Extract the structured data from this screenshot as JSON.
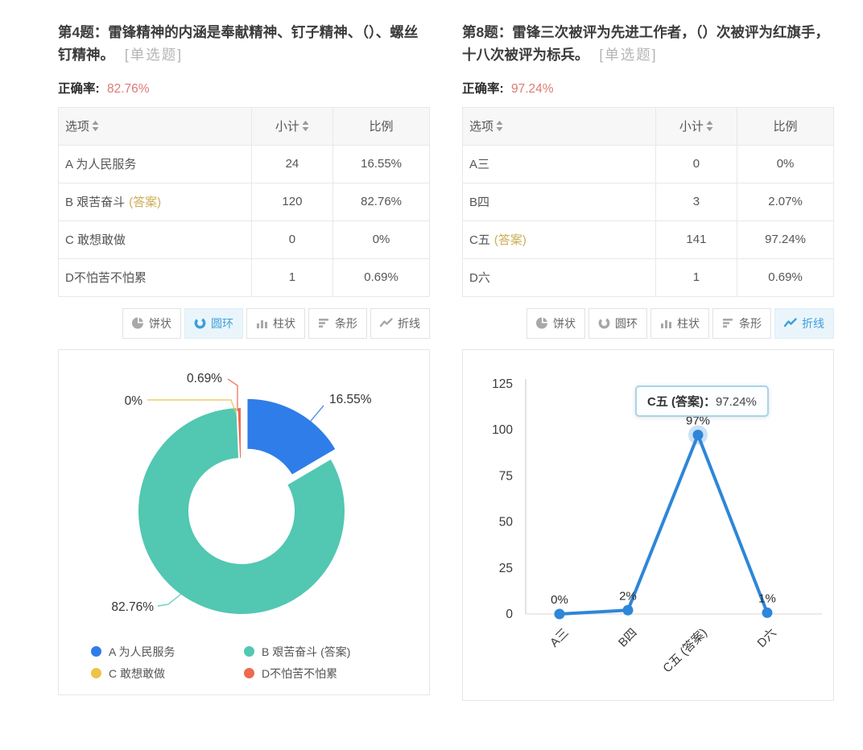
{
  "colors": {
    "series": [
      "#2f7de8",
      "#52c7b2",
      "#f0c24b",
      "#ec6a4f"
    ],
    "line_series": "#2e86d8",
    "active_tab_text": "#3ba0da",
    "answer_tag_gold": "#ccad56",
    "correct_rate_red": "#dd7a72"
  },
  "questions": [
    {
      "title": "第4题：雷锋精神的内涵是奉献精神、钉子精神、（）、螺丝钉精神。",
      "type_tag": "[单选题]",
      "correct_rate_label": "正确率:",
      "correct_rate": "82.76%",
      "table": {
        "headers": [
          {
            "label": "选项",
            "sortable": true
          },
          {
            "label": "小计",
            "sortable": true
          },
          {
            "label": "比例",
            "sortable": false
          }
        ],
        "rows": [
          {
            "option": "A 为人民服务",
            "answer_tag": "",
            "count": "24",
            "ratio": "16.55%"
          },
          {
            "option": "B 艰苦奋斗",
            "answer_tag": "(答案)",
            "count": "120",
            "ratio": "82.76%"
          },
          {
            "option": "C 敢想敢做",
            "answer_tag": "",
            "count": "0",
            "ratio": "0%"
          },
          {
            "option": "D不怕苦不怕累",
            "answer_tag": "",
            "count": "1",
            "ratio": "0.69%"
          }
        ]
      },
      "toolbar": [
        {
          "label": "饼状",
          "icon": "pie",
          "active": false
        },
        {
          "label": "圆环",
          "icon": "donut",
          "active": true
        },
        {
          "label": "柱状",
          "icon": "column",
          "active": false
        },
        {
          "label": "条形",
          "icon": "bar",
          "active": false
        },
        {
          "label": "折线",
          "icon": "line",
          "active": false
        }
      ]
    },
    {
      "title": "第8题：雷锋三次被评为先进工作者，（）次被评为红旗手，十八次被评为标兵。",
      "type_tag": "[单选题]",
      "correct_rate_label": "正确率:",
      "correct_rate": "97.24%",
      "table": {
        "headers": [
          {
            "label": "选项",
            "sortable": true
          },
          {
            "label": "小计",
            "sortable": true
          },
          {
            "label": "比例",
            "sortable": false
          }
        ],
        "rows": [
          {
            "option": "A三",
            "answer_tag": "",
            "count": "0",
            "ratio": "0%"
          },
          {
            "option": "B四",
            "answer_tag": "",
            "count": "3",
            "ratio": "2.07%"
          },
          {
            "option": "C五",
            "answer_tag": "(答案)",
            "count": "141",
            "ratio": "97.24%"
          },
          {
            "option": "D六",
            "answer_tag": "",
            "count": "1",
            "ratio": "0.69%"
          }
        ]
      },
      "toolbar": [
        {
          "label": "饼状",
          "icon": "pie",
          "active": false
        },
        {
          "label": "圆环",
          "icon": "donut",
          "active": false
        },
        {
          "label": "柱状",
          "icon": "column",
          "active": false
        },
        {
          "label": "条形",
          "icon": "bar",
          "active": false
        },
        {
          "label": "折线",
          "icon": "line",
          "active": true
        }
      ]
    }
  ],
  "chart_data": [
    {
      "type": "pie",
      "subtype": "donut",
      "categories": [
        "A 为人民服务",
        "B 艰苦奋斗 (答案)",
        "C 敢想敢做",
        "D不怕苦不怕累"
      ],
      "values": [
        16.55,
        82.76,
        0,
        0.69
      ],
      "labels": [
        "16.55%",
        "82.76%",
        "0%",
        "0.69%"
      ],
      "colors": [
        "#2f7de8",
        "#52c7b2",
        "#f0c24b",
        "#ec6a4f"
      ],
      "exploded_slice": 0,
      "legend": [
        "A 为人民服务",
        "B 艰苦奋斗 (答案)",
        "C 敢想敢做",
        "D不怕苦不怕累"
      ],
      "legend_position": "bottom"
    },
    {
      "type": "line",
      "categories": [
        "A三",
        "B四",
        "C五 (答案)",
        "D六"
      ],
      "values": [
        0,
        2.07,
        97.24,
        0.69
      ],
      "point_labels": [
        "0%",
        "2%",
        "97%",
        "1%"
      ],
      "ylim": [
        0,
        125
      ],
      "yticks": [
        0,
        25,
        50,
        75,
        100,
        125
      ],
      "color": "#2e86d8",
      "grid": false,
      "tooltip": {
        "label": "C五 (答案)：",
        "value": "97.24%",
        "target_index": 2
      }
    }
  ]
}
